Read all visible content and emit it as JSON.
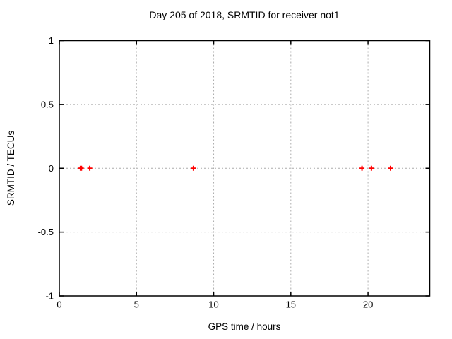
{
  "chart_data": {
    "type": "scatter",
    "title": "Day 205 of 2018, SRMTID for receiver not1",
    "xlabel": "GPS time / hours",
    "ylabel": "SRMTID / TECUs",
    "xlim": [
      0,
      24
    ],
    "ylim": [
      -1,
      1
    ],
    "xticks": [
      0,
      5,
      10,
      15,
      20
    ],
    "xtick_labels": [
      "0",
      "5",
      "10",
      "15",
      "20"
    ],
    "yticks": [
      1,
      0.5,
      0,
      -0.5,
      -1
    ],
    "ytick_labels": [
      "1",
      "0.5",
      "0",
      "-0.5",
      "-1"
    ],
    "grid": true,
    "legend_position": "none",
    "marker": "plus",
    "colors": {
      "marker": "#ff0000",
      "grid": "#ababab",
      "border": "#000000",
      "background": "#ffffff"
    },
    "series": [
      {
        "name": "SRMTID",
        "x": [
          1.37,
          1.43,
          1.97,
          8.69,
          19.61,
          20.22,
          21.46
        ],
        "y": [
          0,
          0,
          0,
          0,
          0,
          0,
          0
        ]
      }
    ]
  }
}
